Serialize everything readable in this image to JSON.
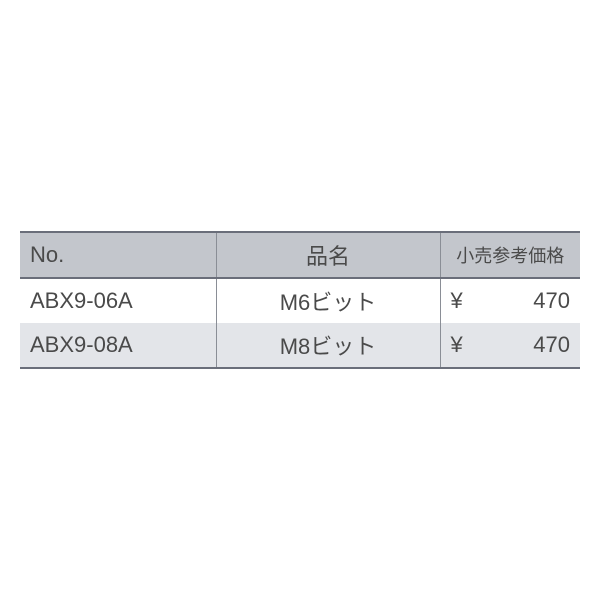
{
  "table": {
    "type": "table",
    "columns": [
      {
        "key": "no",
        "label": "No.",
        "align": "left",
        "width_pct": 35
      },
      {
        "key": "name",
        "label": "品名",
        "align": "center",
        "width_pct": 40
      },
      {
        "key": "price",
        "label": "小売参考価格",
        "align": "split",
        "width_pct": 25
      }
    ],
    "rows": [
      {
        "no": "ABX9-06A",
        "name": "M6ビット",
        "currency": "¥",
        "price": "470"
      },
      {
        "no": "ABX9-08A",
        "name": "M8ビット",
        "currency": "¥",
        "price": "470"
      }
    ],
    "header_bg": "#c3c6cc",
    "row_even_bg": "#e3e5e9",
    "row_odd_bg": "#ffffff",
    "border_color": "#6a6e7a",
    "separator_color": "#8a8e96",
    "text_color": "#4a4a4a",
    "header_fontsize": 22,
    "cell_fontsize": 22
  }
}
